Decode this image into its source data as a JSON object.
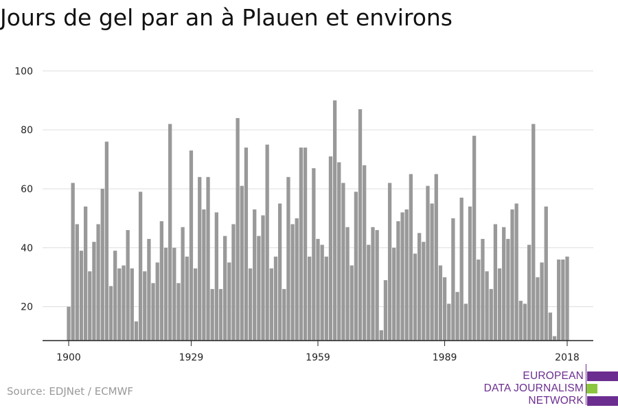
{
  "header": {
    "title": "Jours de gel par an à Plauen et environs"
  },
  "footer": {
    "source": "Source: EDJNet / ECMWF"
  },
  "logo": {
    "lines": [
      "EUROPEAN",
      "DATA JOURNALISM",
      "NETWORK"
    ],
    "colors": {
      "primary": "#6b2d8f",
      "accent": "#8cc63f"
    }
  },
  "chart_data": {
    "type": "bar",
    "title": "Jours de gel par an à Plauen et environs",
    "xlabel": "",
    "ylabel": "",
    "x": [
      1900,
      1901,
      1902,
      1903,
      1904,
      1905,
      1906,
      1907,
      1908,
      1909,
      1910,
      1911,
      1912,
      1913,
      1914,
      1915,
      1916,
      1917,
      1918,
      1919,
      1920,
      1921,
      1922,
      1923,
      1924,
      1925,
      1926,
      1927,
      1928,
      1929,
      1930,
      1931,
      1932,
      1933,
      1934,
      1935,
      1936,
      1937,
      1938,
      1939,
      1940,
      1941,
      1942,
      1943,
      1944,
      1945,
      1946,
      1947,
      1948,
      1949,
      1950,
      1951,
      1952,
      1953,
      1954,
      1955,
      1956,
      1957,
      1958,
      1959,
      1960,
      1961,
      1962,
      1963,
      1964,
      1965,
      1966,
      1967,
      1968,
      1969,
      1970,
      1971,
      1972,
      1973,
      1974,
      1975,
      1976,
      1977,
      1978,
      1979,
      1980,
      1981,
      1982,
      1983,
      1984,
      1985,
      1986,
      1987,
      1988,
      1989,
      1990,
      1991,
      1992,
      1993,
      1994,
      1995,
      1996,
      1997,
      1998,
      1999,
      2000,
      2001,
      2002,
      2003,
      2004,
      2005,
      2006,
      2007,
      2008,
      2009,
      2010,
      2011,
      2012,
      2013,
      2014,
      2015,
      2016,
      2017,
      2018,
      2019
    ],
    "values": [
      20,
      62,
      48,
      39,
      54,
      32,
      42,
      48,
      60,
      76,
      27,
      39,
      33,
      34,
      46,
      33,
      15,
      59,
      32,
      43,
      28,
      35,
      49,
      40,
      82,
      40,
      28,
      47,
      37,
      73,
      33,
      64,
      53,
      64,
      26,
      52,
      26,
      44,
      35,
      48,
      84,
      61,
      74,
      33,
      53,
      44,
      51,
      75,
      33,
      37,
      55,
      26,
      64,
      48,
      50,
      74,
      74,
      37,
      67,
      43,
      41,
      37,
      71,
      90,
      69,
      62,
      47,
      34,
      59,
      87,
      68,
      41,
      47,
      46,
      12,
      29,
      62,
      40,
      49,
      52,
      53,
      65,
      38,
      45,
      42,
      61,
      55,
      65,
      34,
      30,
      21,
      50,
      25,
      57,
      21,
      54,
      78,
      36,
      43,
      32,
      26,
      48,
      33,
      47,
      43,
      53,
      55,
      22,
      21,
      41,
      82,
      30,
      35,
      54,
      18,
      10,
      36,
      36,
      37,
      null
    ],
    "x_ticks": [
      1900,
      1929,
      1959,
      1989,
      2018
    ],
    "y_ticks": [
      20,
      40,
      60,
      80,
      100
    ],
    "ylim": [
      8.5,
      101
    ],
    "xlim": [
      1900,
      2019
    ],
    "grid": true,
    "colors": {
      "bar": "#999999"
    }
  }
}
